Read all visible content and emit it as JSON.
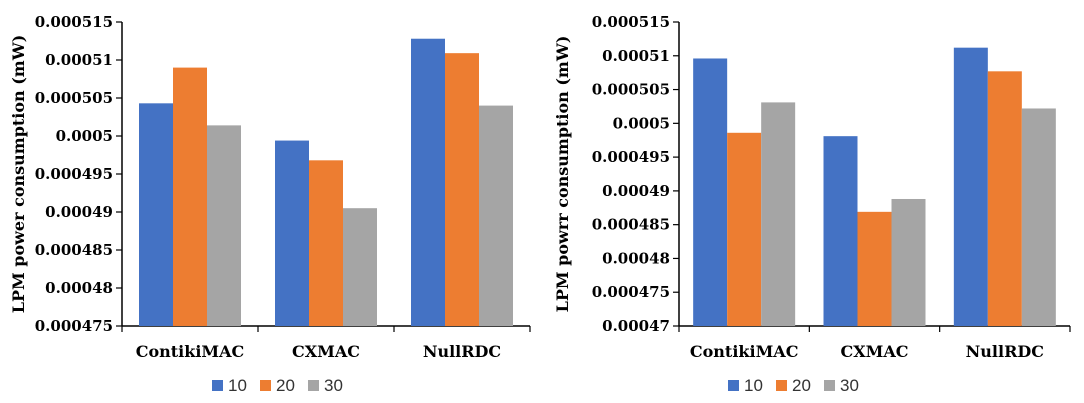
{
  "chart_data": [
    {
      "type": "bar",
      "ylabel": "LPM power consumption (mW)",
      "categories": [
        "ContikiMAC",
        "CXMAC",
        "NullRDC"
      ],
      "ylim": [
        0.000475,
        0.000515
      ],
      "yticks": [
        "0.000475",
        "0.00048",
        "0.000485",
        "0.00049",
        "0.000495",
        "0.0005",
        "0.000505",
        "0.00051",
        "0.000515"
      ],
      "grid": false,
      "legend_position": "bottom",
      "series": [
        {
          "name": "10",
          "color": "#4472C4",
          "values": [
            0.0005043,
            0.0004994,
            0.0005128
          ]
        },
        {
          "name": "20",
          "color": "#ED7D31",
          "values": [
            0.000509,
            0.0004968,
            0.0005109
          ]
        },
        {
          "name": "30",
          "color": "#A5A5A5",
          "values": [
            0.0005014,
            0.0004905,
            0.000504
          ]
        }
      ]
    },
    {
      "type": "bar",
      "ylabel": "LPM powrr consumption (mW)",
      "categories": [
        "ContikiMAC",
        "CXMAC",
        "NullRDC"
      ],
      "ylim": [
        0.00047,
        0.000515
      ],
      "yticks": [
        "0.00047",
        "0.000475",
        "0.00048",
        "0.000485",
        "0.00049",
        "0.000495",
        "0.0005",
        "0.000505",
        "0.00051",
        "0.000515"
      ],
      "grid": false,
      "legend_position": "bottom",
      "series": [
        {
          "name": "10",
          "color": "#4472C4",
          "values": [
            0.0005096,
            0.0004981,
            0.0005112
          ]
        },
        {
          "name": "20",
          "color": "#ED7D31",
          "values": [
            0.0004986,
            0.0004869,
            0.0005077
          ]
        },
        {
          "name": "30",
          "color": "#A5A5A5",
          "values": [
            0.0005031,
            0.0004888,
            0.0005022
          ]
        }
      ]
    }
  ]
}
